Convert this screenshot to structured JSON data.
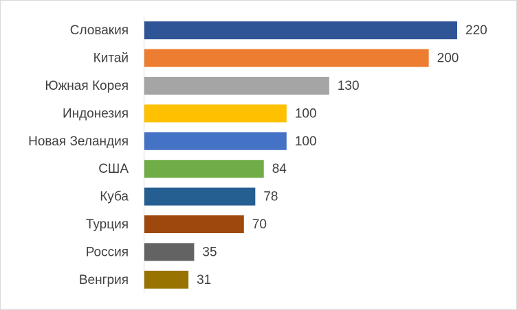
{
  "chart_data": {
    "type": "bar",
    "orientation": "horizontal",
    "categories": [
      "Словакия",
      "Китай",
      "Южная Корея",
      "Индонезия",
      "Новая Зеландия",
      "США",
      "Куба",
      "Турция",
      "Россия",
      "Венгрия"
    ],
    "values": [
      220,
      200,
      130,
      100,
      100,
      84,
      78,
      70,
      35,
      31
    ],
    "colors": [
      "#2f5597",
      "#ed7d31",
      "#a5a5a5",
      "#ffc000",
      "#4472c4",
      "#70ad47",
      "#255e91",
      "#9e480e",
      "#636363",
      "#997300"
    ],
    "xlim": [
      0,
      220
    ]
  }
}
